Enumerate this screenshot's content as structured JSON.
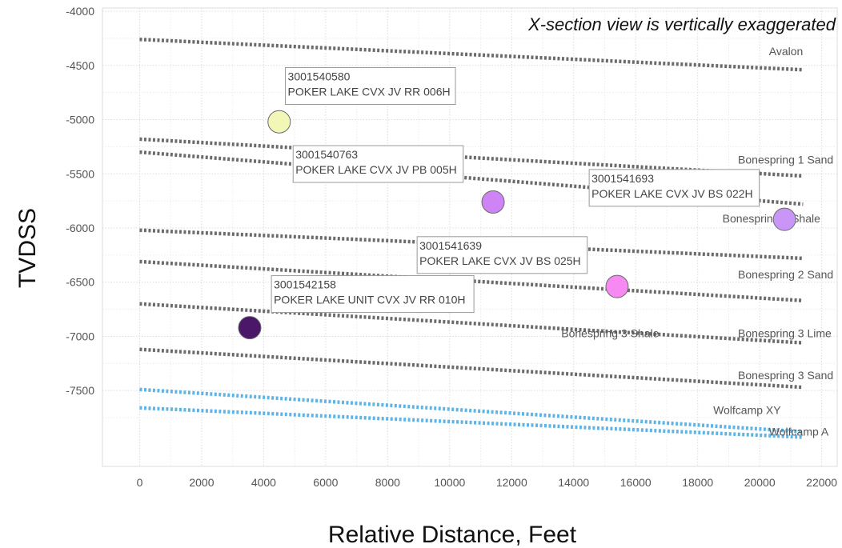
{
  "chart_data": {
    "type": "scatter",
    "note": "X-section view is vertically exaggerated",
    "xlabel": "Relative Distance, Feet",
    "ylabel": "TVDSS",
    "xlim": [
      -1200,
      22500
    ],
    "ylim": [
      -8200,
      -3970
    ],
    "xticks": [
      0,
      2000,
      4000,
      6000,
      8000,
      10000,
      12000,
      14000,
      16000,
      18000,
      20000,
      22000
    ],
    "yticks": [
      -4000,
      -4500,
      -5000,
      -5500,
      -6000,
      -6500,
      -7000,
      -7500
    ],
    "grid": true,
    "formation_tops": [
      {
        "name": "Avalon",
        "points": [
          [
            0,
            -4260
          ],
          [
            21400,
            -4540
          ]
        ],
        "color": "#6b6b6b",
        "label_at": [
          20300,
          -4370
        ]
      },
      {
        "name": "Bonespring 1 Sand",
        "points": [
          [
            0,
            -5180
          ],
          [
            21400,
            -5520
          ]
        ],
        "color": "#6b6b6b",
        "label_at": [
          19300,
          -5370
        ]
      },
      {
        "name": "Bonespring 2 Shale",
        "points": [
          [
            0,
            -5300
          ],
          [
            21400,
            -5780
          ]
        ],
        "color": "#6b6b6b",
        "label_at": [
          18800,
          -5910
        ]
      },
      {
        "name": "Bonespring 2 Sand",
        "points": [
          [
            0,
            -6020
          ],
          [
            21400,
            -6280
          ]
        ],
        "color": "#6b6b6b",
        "label_at": [
          19300,
          -6430
        ]
      },
      {
        "name": "Bonespring 3 Shale",
        "points": [
          [
            0,
            -6310
          ],
          [
            21400,
            -6670
          ]
        ],
        "color": "#6b6b6b",
        "label_at": [
          13600,
          -6970
        ]
      },
      {
        "name": "Bonespring 3 Lime",
        "points": [
          [
            0,
            -6700
          ],
          [
            21400,
            -7060
          ]
        ],
        "color": "#6b6b6b",
        "label_at": [
          19300,
          -6970
        ]
      },
      {
        "name": "Bonespring 3 Sand",
        "points": [
          [
            0,
            -7120
          ],
          [
            21400,
            -7470
          ]
        ],
        "color": "#6b6b6b",
        "label_at": [
          19300,
          -7360
        ]
      },
      {
        "name": "Wolfcamp XY",
        "points": [
          [
            0,
            -7490
          ],
          [
            21400,
            -7880
          ]
        ],
        "color": "#5fb4e6",
        "label_at": [
          18500,
          -7680
        ]
      },
      {
        "name": "Wolfcamp A",
        "points": [
          [
            0,
            -7660
          ],
          [
            21400,
            -7930
          ]
        ],
        "color": "#5fb4e6",
        "label_at": [
          20300,
          -7880
        ]
      }
    ],
    "wells": [
      {
        "api": "3001540580",
        "name": "POKER LAKE CVX JV RR 006H",
        "x": 4500,
        "y": -5020,
        "color": "#f2f7b8",
        "label_at": [
          4700,
          -4520
        ]
      },
      {
        "api": "3001540763",
        "name": "POKER LAKE CVX JV PB 005H",
        "x": 11400,
        "y": -5760,
        "color": "#cf84f5",
        "label_at": [
          4950,
          -5240
        ]
      },
      {
        "api": "3001541693",
        "name": "POKER LAKE CVX JV BS 022H",
        "x": 20800,
        "y": -5920,
        "color": "#c995f7",
        "label_at": [
          14500,
          -5460
        ]
      },
      {
        "api": "3001541639",
        "name": "POKER LAKE CVX JV BS 025H",
        "x": 15400,
        "y": -6540,
        "color": "#f68af2",
        "label_at": [
          8950,
          -6080
        ]
      },
      {
        "api": "3001542158",
        "name": "POKER LAKE UNIT CVX JV RR 010H",
        "x": 3550,
        "y": -6920,
        "color": "#4b1768",
        "label_at": [
          4250,
          -6440
        ]
      }
    ]
  }
}
